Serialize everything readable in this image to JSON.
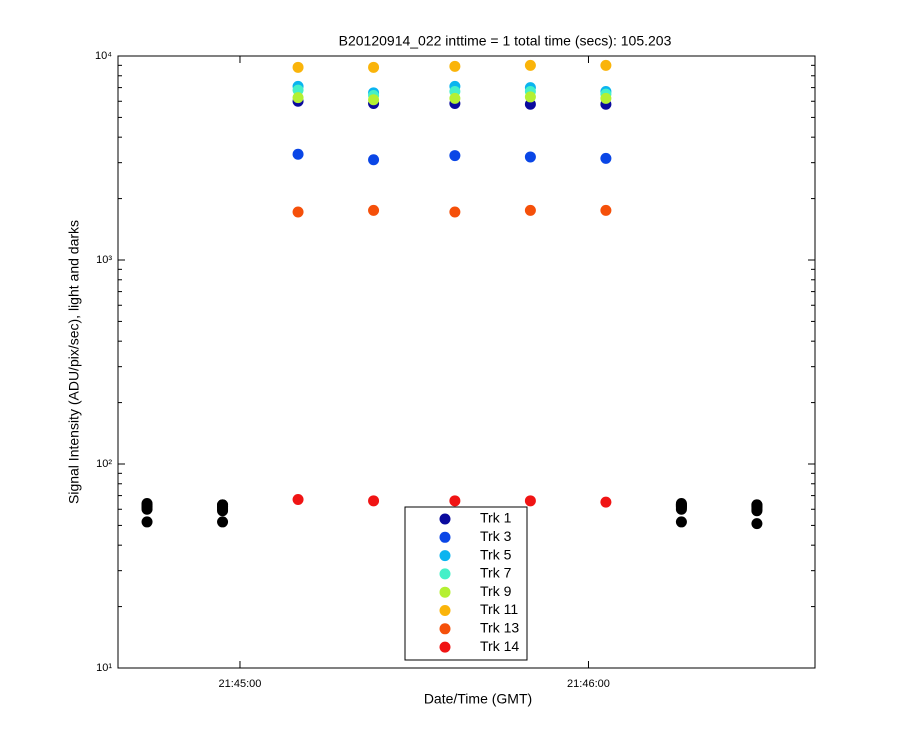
{
  "chart_data": {
    "type": "scatter",
    "title": "B20120914_022 inttime = 1 total time (secs): 105.203",
    "x_label": "Date/Time (GMT)",
    "y_label": "Signal Intensity (ADU/pix/sec), light and darks",
    "log_y": true,
    "legend": "bottom-center",
    "xlim": [
      "21:44:39",
      "21:46:39"
    ],
    "xticks": [
      "21:45:00",
      "21:46:00"
    ],
    "ylim": [
      10,
      10000
    ],
    "yticks": [
      {
        "value": 10,
        "label": "10¹"
      },
      {
        "value": 100,
        "label": "10²"
      },
      {
        "value": 1000,
        "label": "10³"
      },
      {
        "value": 10000,
        "label": "10⁴"
      }
    ],
    "x": [
      "21:45:10",
      "21:45:23",
      "21:45:37",
      "21:45:50",
      "21:46:03"
    ],
    "series": [
      {
        "name": "Trk 1",
        "color": "#0a0a9e",
        "values": [
          6000,
          5850,
          5850,
          5800,
          5800
        ]
      },
      {
        "name": "Trk 3",
        "color": "#0a46e6",
        "values": [
          3300,
          3100,
          3250,
          3200,
          3150
        ]
      },
      {
        "name": "Trk 5",
        "color": "#0ab4f0",
        "values": [
          7100,
          6600,
          7100,
          7000,
          6700
        ]
      },
      {
        "name": "Trk 7",
        "color": "#46f0c8",
        "values": [
          6800,
          6400,
          6700,
          6700,
          6500
        ]
      },
      {
        "name": "Trk 9",
        "color": "#b4f032",
        "values": [
          6250,
          6100,
          6200,
          6300,
          6200
        ]
      },
      {
        "name": "Trk 11",
        "color": "#fab40a",
        "values": [
          8800,
          8800,
          8900,
          9000,
          9000
        ]
      },
      {
        "name": "Trk 13",
        "color": "#f5500a",
        "values": [
          1720,
          1750,
          1720,
          1750,
          1750
        ]
      },
      {
        "name": "Trk 14",
        "color": "#f01414",
        "values": [
          67,
          66,
          66,
          66,
          65
        ]
      }
    ],
    "dark_x": [
      "21:44:44",
      "21:44:57",
      "21:46:16",
      "21:46:29"
    ],
    "dark_color": "#000000",
    "dark_series": [
      {
        "values": [
          52,
          52,
          52,
          51
        ]
      },
      {
        "values": [
          60,
          59,
          60,
          59
        ]
      },
      {
        "values": [
          61,
          60,
          61,
          60
        ]
      },
      {
        "values": [
          62,
          61,
          62,
          61
        ]
      },
      {
        "values": [
          62,
          62,
          62,
          62
        ]
      },
      {
        "values": [
          63,
          62,
          63,
          62
        ]
      },
      {
        "values": [
          63,
          63,
          63,
          63
        ]
      },
      {
        "values": [
          64,
          63,
          64,
          63
        ]
      }
    ]
  }
}
